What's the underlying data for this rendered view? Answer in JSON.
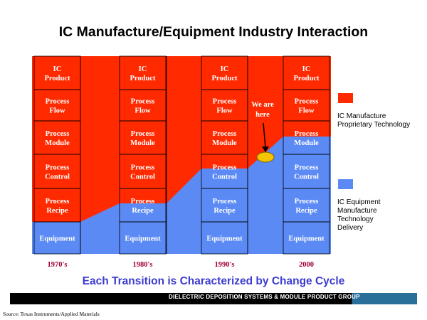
{
  "title": "IC Manufacture/Equipment Industry Interaction",
  "columns": [
    {
      "cells": [
        "IC\nProduct",
        "Process\nFlow",
        "Process\nModule",
        "Process\nControl",
        "Process\nRecipe",
        "Equipment"
      ],
      "decade": "1970's"
    },
    {
      "cells": [
        "IC\nProduct",
        "Process\nFlow",
        "Process\nModule",
        "Process\nControl",
        "Process\nRecipe",
        "Equipment"
      ],
      "decade": "1980's"
    },
    {
      "cells": [
        "IC\nProduct",
        "Process\nFlow",
        "Process\nModule",
        "Process\nControl",
        "Process\nRecipe",
        "Equipment"
      ],
      "decade": "1990's"
    },
    {
      "cells": [
        "IC\nProduct",
        "Process\nFlow",
        "Process\nModule",
        "Process\nControl",
        "Process\nRecipe",
        "Equipment"
      ],
      "decade": "2000"
    }
  ],
  "callout": "We are\nhere",
  "legend": [
    {
      "label": "IC Manufacture\nProprietary Technology",
      "color": "#ff2a00"
    },
    {
      "label": "IC Equipment\nManufacture\nTechnology\nDelivery",
      "color": "#5b8af5"
    }
  ],
  "subtitle": "Each Transition is Characterized by Change Cycle",
  "footer": "DIELECTRIC DEPOSITION SYSTEMS & MODULE PRODUCT GROUP",
  "source": "Source: Texas Instruments/Applied Materials",
  "colors": {
    "red": "#ff2a00",
    "blue": "#5b8af5",
    "marker": "#f5c400",
    "decade": "#a00030"
  }
}
